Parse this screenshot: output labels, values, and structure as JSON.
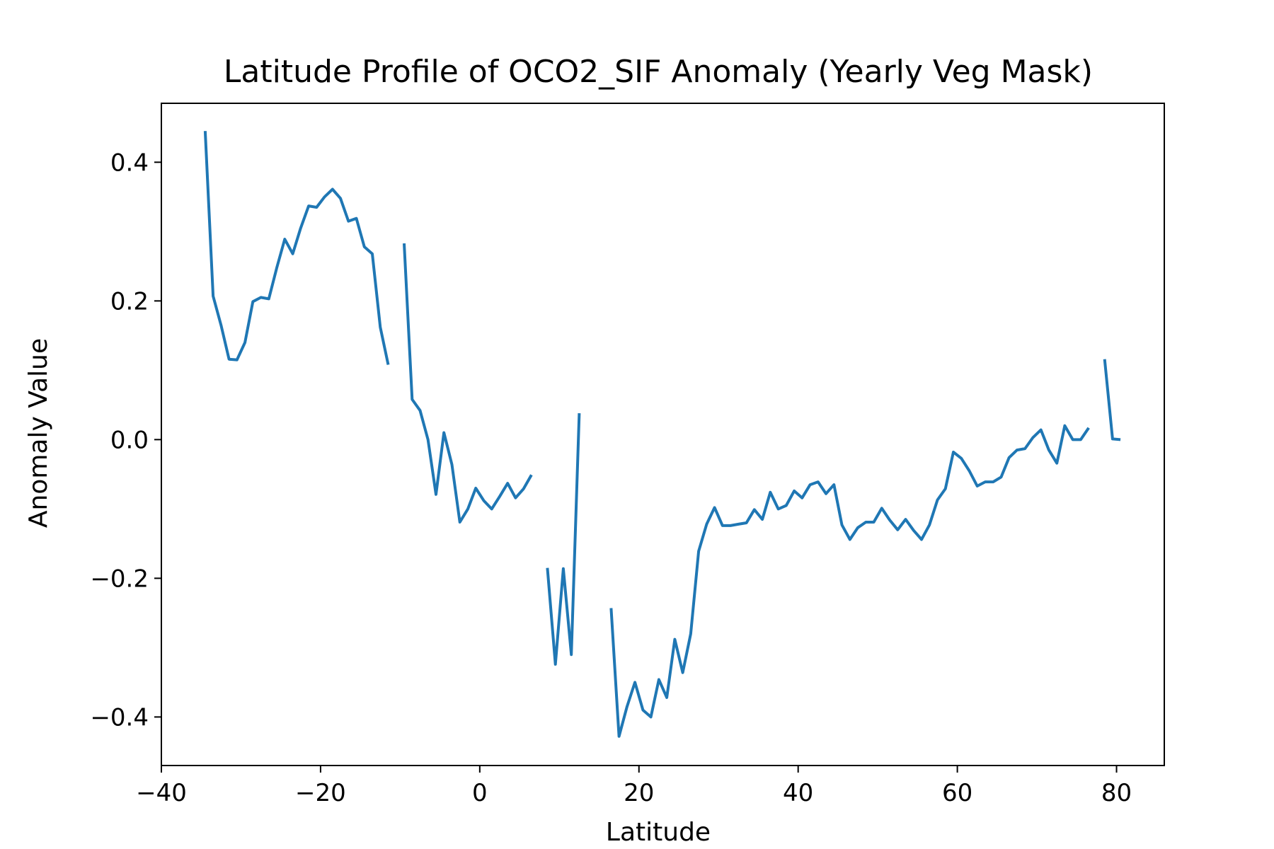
{
  "chart_data": {
    "type": "line",
    "title": "Latitude Profile of OCO2_SIF Anomaly (Yearly Veg Mask)",
    "xlabel": "Latitude",
    "ylabel": "Anomaly Value",
    "xlim": [
      -40,
      86
    ],
    "ylim": [
      -0.47,
      0.485
    ],
    "xticks": [
      {
        "value": -40,
        "label": "−40"
      },
      {
        "value": -20,
        "label": "−20"
      },
      {
        "value": 0,
        "label": "0"
      },
      {
        "value": 20,
        "label": "20"
      },
      {
        "value": 40,
        "label": "40"
      },
      {
        "value": 60,
        "label": "60"
      },
      {
        "value": 80,
        "label": "80"
      }
    ],
    "yticks": [
      {
        "value": -0.4,
        "label": "−0.4"
      },
      {
        "value": -0.2,
        "label": "−0.2"
      },
      {
        "value": 0.0,
        "label": "0.0"
      },
      {
        "value": 0.2,
        "label": "0.2"
      },
      {
        "value": 0.4,
        "label": "0.4"
      }
    ],
    "grid": false,
    "color": "#1f77b4",
    "series": [
      {
        "x": [
          -34.5,
          -33.5,
          -32.5,
          -31.5,
          -30.5,
          -29.5,
          -28.5,
          -27.5,
          -26.5,
          -25.5,
          -24.5,
          -23.5,
          -22.5,
          -21.5,
          -20.5,
          -19.5,
          -18.5,
          -17.5,
          -16.5,
          -15.5,
          -14.5,
          -13.5,
          -12.5,
          -11.5,
          -9.5,
          -8.5,
          -7.5,
          -6.5,
          -5.5,
          -4.5,
          -3.5,
          -2.5,
          -1.5,
          -0.5,
          0.5,
          1.5,
          2.5,
          3.5,
          4.5,
          5.5,
          6.5,
          8.5,
          9.5,
          10.5,
          11.5,
          12.5,
          16.5,
          17.5,
          18.5,
          19.5,
          20.5,
          21.5,
          22.5,
          23.5,
          24.5,
          25.5,
          26.5,
          27.5,
          28.5,
          29.5,
          30.5,
          31.5,
          32.5,
          33.5,
          34.5,
          35.5,
          36.5,
          37.5,
          38.5,
          39.5,
          40.5,
          41.5,
          42.5,
          43.5,
          44.5,
          45.5,
          46.5,
          47.5,
          48.5,
          49.5,
          50.5,
          51.5,
          52.5,
          53.5,
          54.5,
          55.5,
          56.5,
          57.5,
          58.5,
          59.5,
          60.5,
          61.5,
          62.5,
          63.5,
          64.5,
          65.5,
          66.5,
          67.5,
          68.5,
          69.5,
          70.5,
          71.5,
          72.5,
          73.5,
          74.5,
          75.5,
          76.5,
          78.5,
          79.5,
          80.5
        ],
        "y": [
          0.445,
          0.207,
          0.165,
          0.116,
          0.115,
          0.14,
          0.199,
          0.205,
          0.203,
          0.248,
          0.289,
          0.268,
          0.305,
          0.337,
          0.335,
          0.35,
          0.361,
          0.348,
          0.315,
          0.319,
          0.278,
          0.268,
          0.162,
          0.108,
          0.283,
          0.058,
          0.042,
          0.0,
          -0.079,
          0.01,
          -0.036,
          -0.119,
          -0.1,
          -0.07,
          -0.088,
          -0.1,
          -0.082,
          -0.063,
          -0.084,
          -0.071,
          -0.051,
          -0.185,
          -0.324,
          -0.186,
          -0.31,
          0.038,
          -0.243,
          -0.428,
          -0.385,
          -0.35,
          -0.39,
          -0.4,
          -0.346,
          -0.372,
          -0.288,
          -0.336,
          -0.28,
          -0.161,
          -0.122,
          -0.098,
          -0.124,
          -0.124,
          -0.122,
          -0.12,
          -0.101,
          -0.115,
          -0.076,
          -0.1,
          -0.095,
          -0.074,
          -0.084,
          -0.065,
          -0.061,
          -0.078,
          -0.065,
          -0.123,
          -0.144,
          -0.127,
          -0.119,
          -0.119,
          -0.099,
          -0.116,
          -0.13,
          -0.115,
          -0.131,
          -0.144,
          -0.123,
          -0.087,
          -0.071,
          -0.018,
          -0.027,
          -0.045,
          -0.067,
          -0.061,
          -0.061,
          -0.054,
          -0.026,
          -0.015,
          -0.013,
          0.003,
          0.014,
          -0.015,
          -0.034,
          0.02,
          0.0,
          0.0,
          0.017,
          0.116,
          0.001,
          0.0
        ],
        "segments": [
          [
            -34.5,
            -11.5
          ],
          [
            -9.5,
            6.5
          ],
          [
            8.5,
            12.5
          ],
          [
            16.5,
            76.5
          ],
          [
            78.5,
            80.5
          ]
        ]
      }
    ]
  }
}
